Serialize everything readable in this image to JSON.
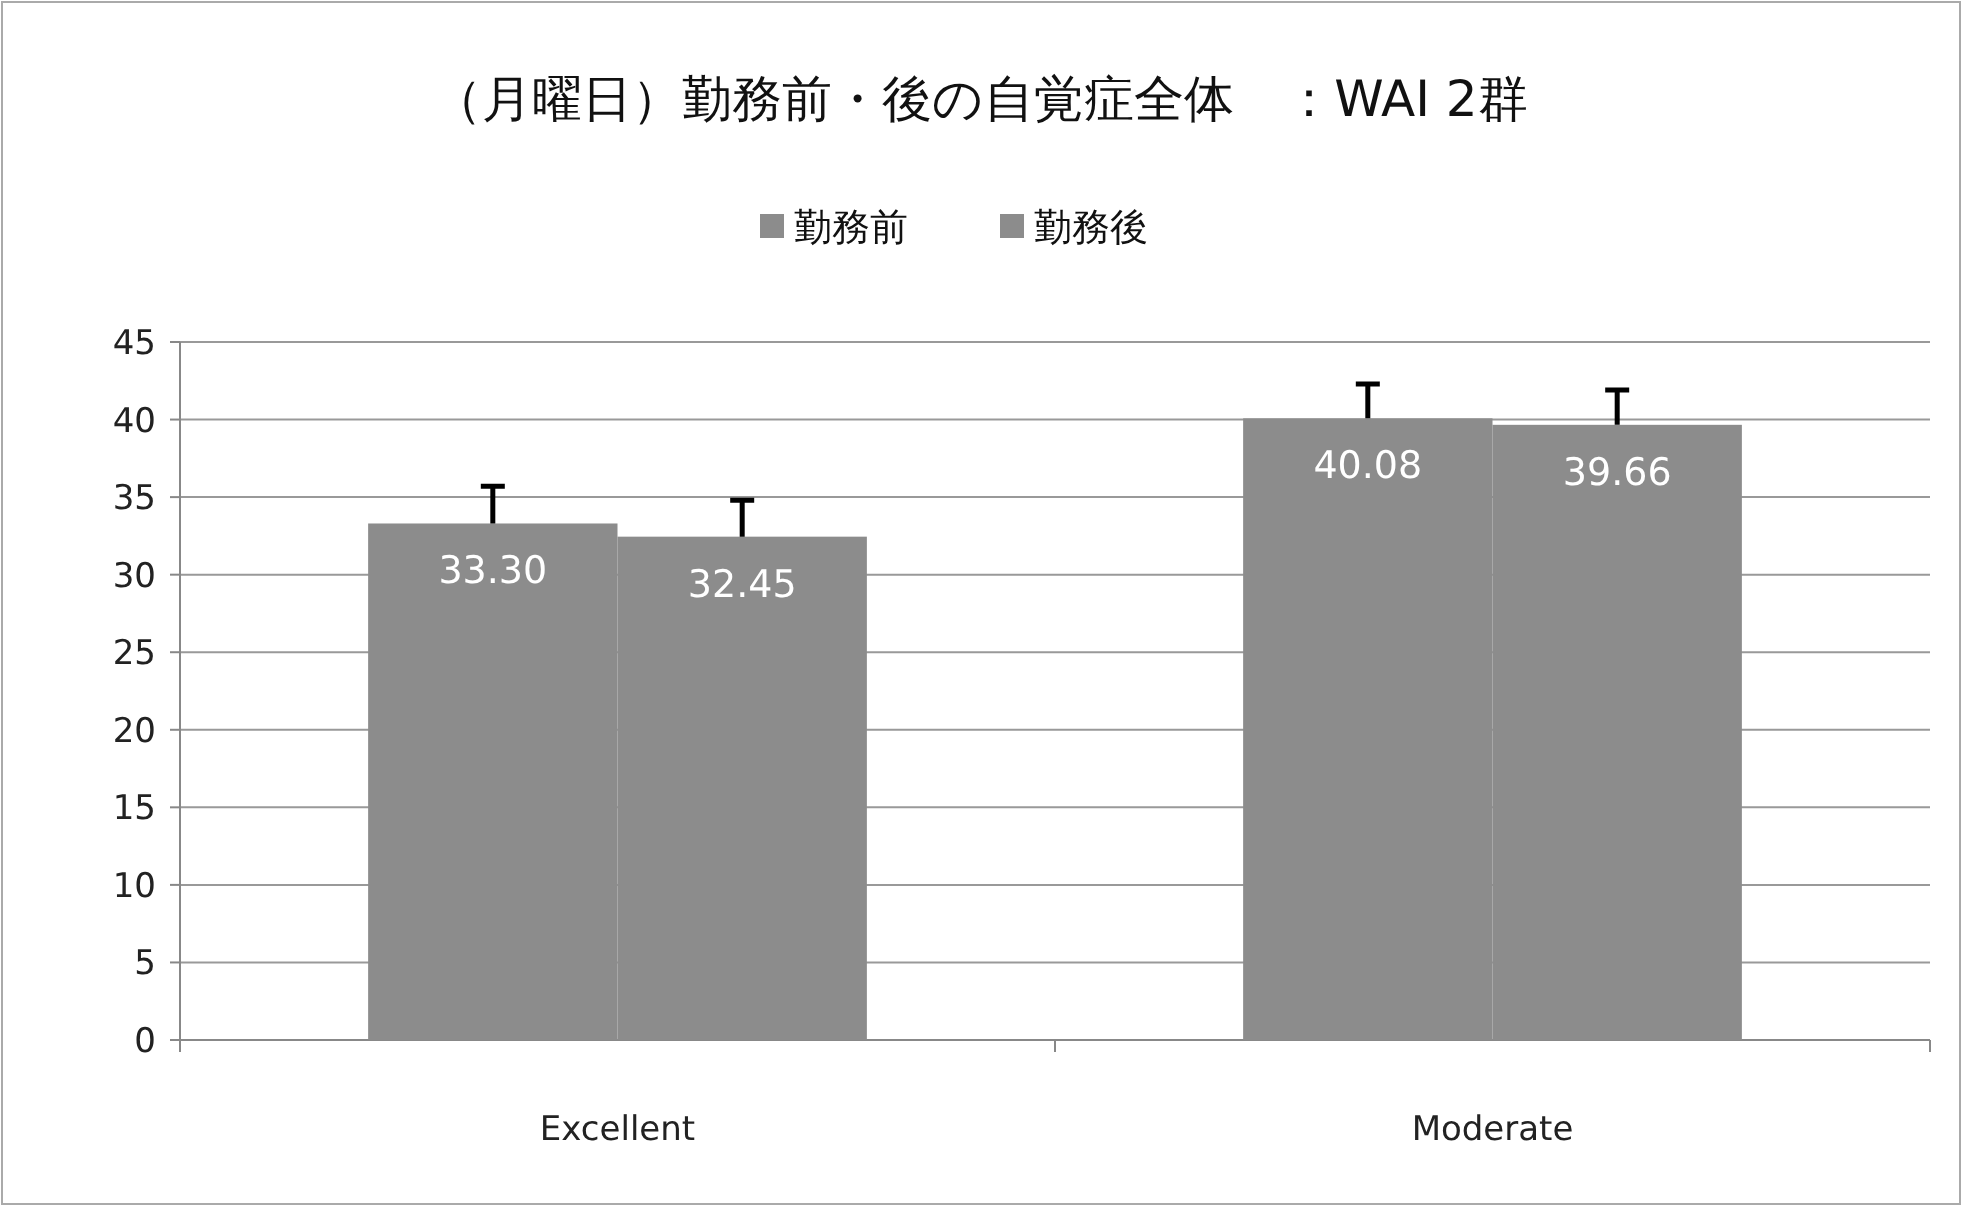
{
  "chart_data": {
    "type": "bar",
    "title": "（月曜日）勤務前・後の自覚症全体　：WAI 2群",
    "categories": [
      "Excellent",
      "Moderate"
    ],
    "series": [
      {
        "name": "勤務前",
        "color": "#8c8c8c",
        "values": [
          33.3,
          40.08
        ],
        "value_labels": [
          "33.30",
          "40.08"
        ],
        "errors": [
          [
            33.3,
            35.7
          ],
          [
            40.08,
            42.3
          ]
        ]
      },
      {
        "name": "勤務後",
        "color": "#8c8c8c",
        "values": [
          32.45,
          39.66
        ],
        "value_labels": [
          "32.45",
          "39.66"
        ],
        "errors": [
          [
            32.45,
            34.8
          ],
          [
            39.66,
            41.9
          ]
        ]
      }
    ],
    "ylim": [
      0,
      45
    ],
    "yticks": [
      0,
      5,
      10,
      15,
      20,
      25,
      30,
      35,
      40,
      45
    ],
    "grid": "y",
    "legend": "top"
  }
}
